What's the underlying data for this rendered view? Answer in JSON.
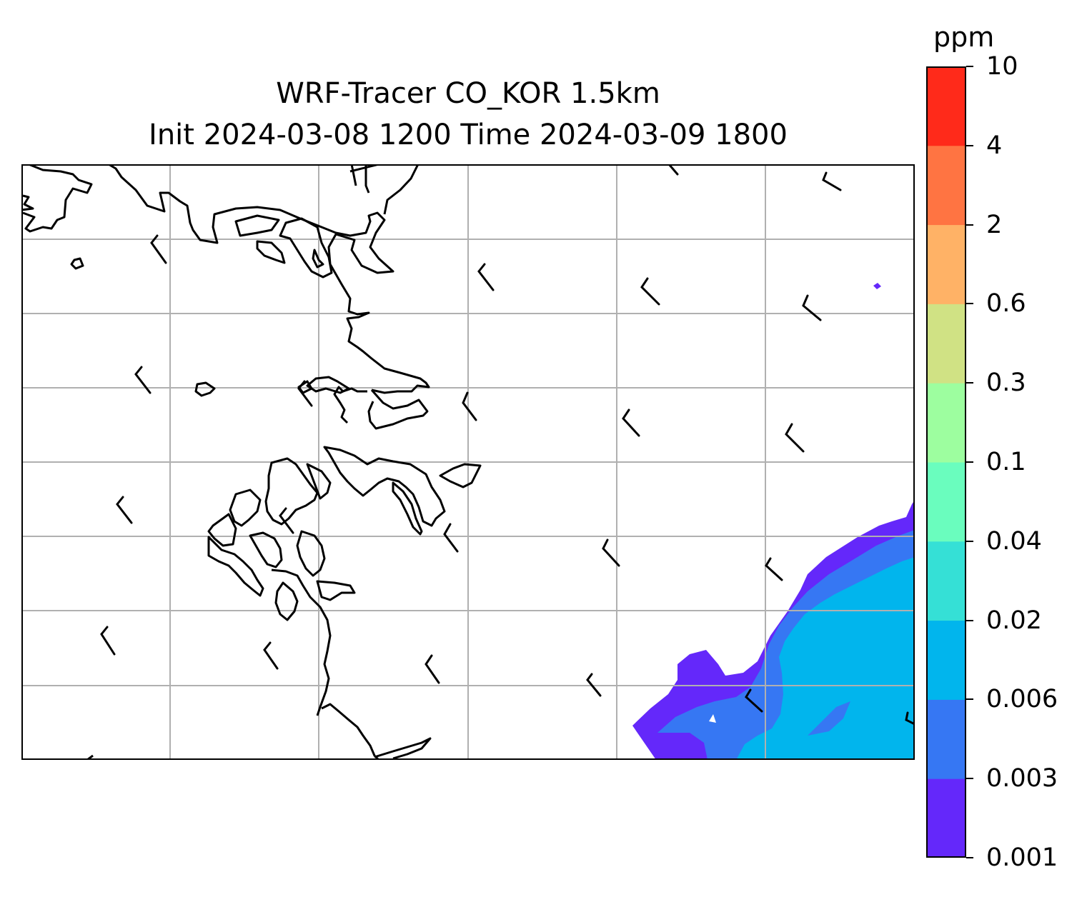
{
  "title": {
    "line1": "WRF-Tracer CO_KOR 1.5km",
    "line2": "Init 2024-03-08 1200 Time 2024-03-09 1800"
  },
  "map": {
    "gridlines": true,
    "gridline_color": "#b0b0b0",
    "coastline_color": "#000000",
    "features": [
      "coastline",
      "gridlines",
      "wind-barbs",
      "tracer-filled-contours"
    ]
  },
  "colorbar": {
    "unit": "ppm",
    "levels": [
      "0.001",
      "0.003",
      "0.006",
      "0.02",
      "0.04",
      "0.1",
      "0.3",
      "0.6",
      "2",
      "4",
      "10"
    ],
    "colors": [
      "#6428fa",
      "#3677f3",
      "#01b5ed",
      "#35e0d6",
      "#6afdbe",
      "#9dfe9f",
      "#d0e284",
      "#ffb266",
      "#ff7442",
      "#ff2a1a"
    ]
  }
}
